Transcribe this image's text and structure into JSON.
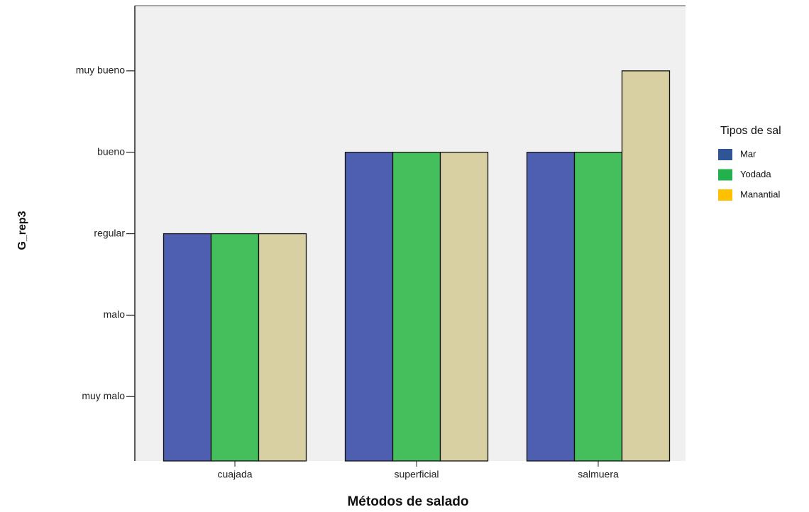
{
  "chart_data": {
    "type": "bar",
    "x_label": "Métodos de salado",
    "y_label": "G_rep3",
    "legend_title": "Tipos de sal",
    "categories": [
      "cuajada",
      "superficial",
      "salmuera"
    ],
    "series": [
      {
        "name": "Mar",
        "color": "#4e5fb2",
        "legend_color": "#2f5597",
        "values": [
          3,
          4,
          4
        ]
      },
      {
        "name": "Yodada",
        "color": "#44bf5c",
        "legend_color": "#22b14c",
        "values": [
          3,
          4,
          4
        ]
      },
      {
        "name": "Manantial",
        "color": "#d8d0a2",
        "legend_color": "#ffc000",
        "values": [
          3,
          4,
          5
        ]
      }
    ],
    "ylim": [
      0.21,
      5.8
    ],
    "yticks": [
      {
        "value": 1,
        "label": "muy malo"
      },
      {
        "value": 2,
        "label": "malo"
      },
      {
        "value": 3,
        "label": "regular"
      },
      {
        "value": 4,
        "label": "bueno"
      },
      {
        "value": 5,
        "label": "muy bueno"
      }
    ],
    "legend": "right"
  }
}
